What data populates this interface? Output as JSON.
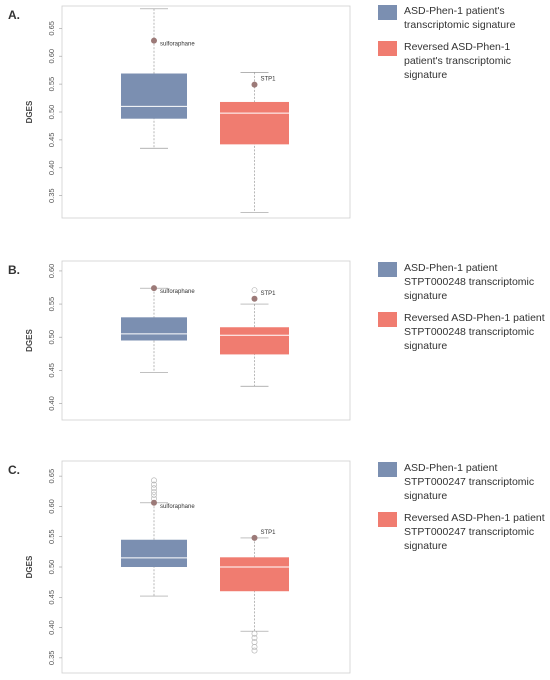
{
  "chart_data": [
    {
      "type": "box",
      "panel": "A.",
      "ylabel": "DGES",
      "ylim": [
        0.31,
        0.69
      ],
      "yticks": [
        "0.35",
        "0.40",
        "0.45",
        "0.50",
        "0.55",
        "0.60",
        "0.65"
      ],
      "legend_placement": "right",
      "series": [
        {
          "name": "ASD-Phen-1 patient's transcriptomic signature",
          "color": "#7b8fb1",
          "whisker_low": 0.435,
          "q1": 0.488,
          "median": 0.51,
          "q3": 0.569,
          "whisker_high": 0.685,
          "outliers": [],
          "highlight": {
            "label": "sulforaphane",
            "value": 0.628
          }
        },
        {
          "name": "Reversed ASD-Phen-1 patient's transcriptomic signature",
          "color": "#f07c70",
          "whisker_low": 0.32,
          "q1": 0.442,
          "median": 0.498,
          "q3": 0.518,
          "whisker_high": 0.571,
          "outliers": [],
          "highlight": {
            "label": "STP1",
            "value": 0.549
          }
        }
      ]
    },
    {
      "type": "box",
      "panel": "B.",
      "ylabel": "DGES",
      "ylim": [
        0.375,
        0.615
      ],
      "yticks": [
        "0.40",
        "0.45",
        "0.50",
        "0.55",
        "0.60"
      ],
      "legend_placement": "right",
      "series": [
        {
          "name": "ASD-Phen-1 patient STPT000248 transcriptomic signature",
          "color": "#7b8fb1",
          "whisker_low": 0.447,
          "q1": 0.495,
          "median": 0.505,
          "q3": 0.53,
          "whisker_high": 0.574,
          "outliers": [],
          "highlight": {
            "label": "sulforaphane",
            "value": 0.574
          }
        },
        {
          "name": "Reversed ASD-Phen-1 patient STPT000248 transcriptomic signature",
          "color": "#f07c70",
          "whisker_low": 0.426,
          "q1": 0.474,
          "median": 0.503,
          "q3": 0.515,
          "whisker_high": 0.55,
          "outliers": [
            0.571
          ],
          "highlight": {
            "label": "STP1",
            "value": 0.558
          }
        }
      ]
    },
    {
      "type": "box",
      "panel": "C.",
      "ylabel": "DGES",
      "ylim": [
        0.325,
        0.675
      ],
      "yticks": [
        "0.35",
        "0.40",
        "0.45",
        "0.50",
        "0.55",
        "0.60",
        "0.65"
      ],
      "legend_placement": "right",
      "series": [
        {
          "name": "ASD-Phen-1 patient STPT000247 transcriptomic signature",
          "color": "#7b8fb1",
          "whisker_low": 0.452,
          "q1": 0.5,
          "median": 0.515,
          "q3": 0.545,
          "whisker_high": 0.606,
          "outliers": [
            0.613,
            0.619,
            0.624,
            0.63,
            0.636,
            0.643
          ],
          "highlight": {
            "label": "sulforaphane",
            "value": 0.606
          }
        },
        {
          "name": "Reversed ASD-Phen-1 patient STPT000247 transcriptomic signature",
          "color": "#f07c70",
          "whisker_low": 0.394,
          "q1": 0.46,
          "median": 0.5,
          "q3": 0.516,
          "whisker_high": 0.548,
          "outliers": [
            0.39,
            0.383,
            0.376,
            0.368,
            0.362
          ],
          "highlight": {
            "label": "STP1",
            "value": 0.548
          }
        }
      ]
    }
  ]
}
